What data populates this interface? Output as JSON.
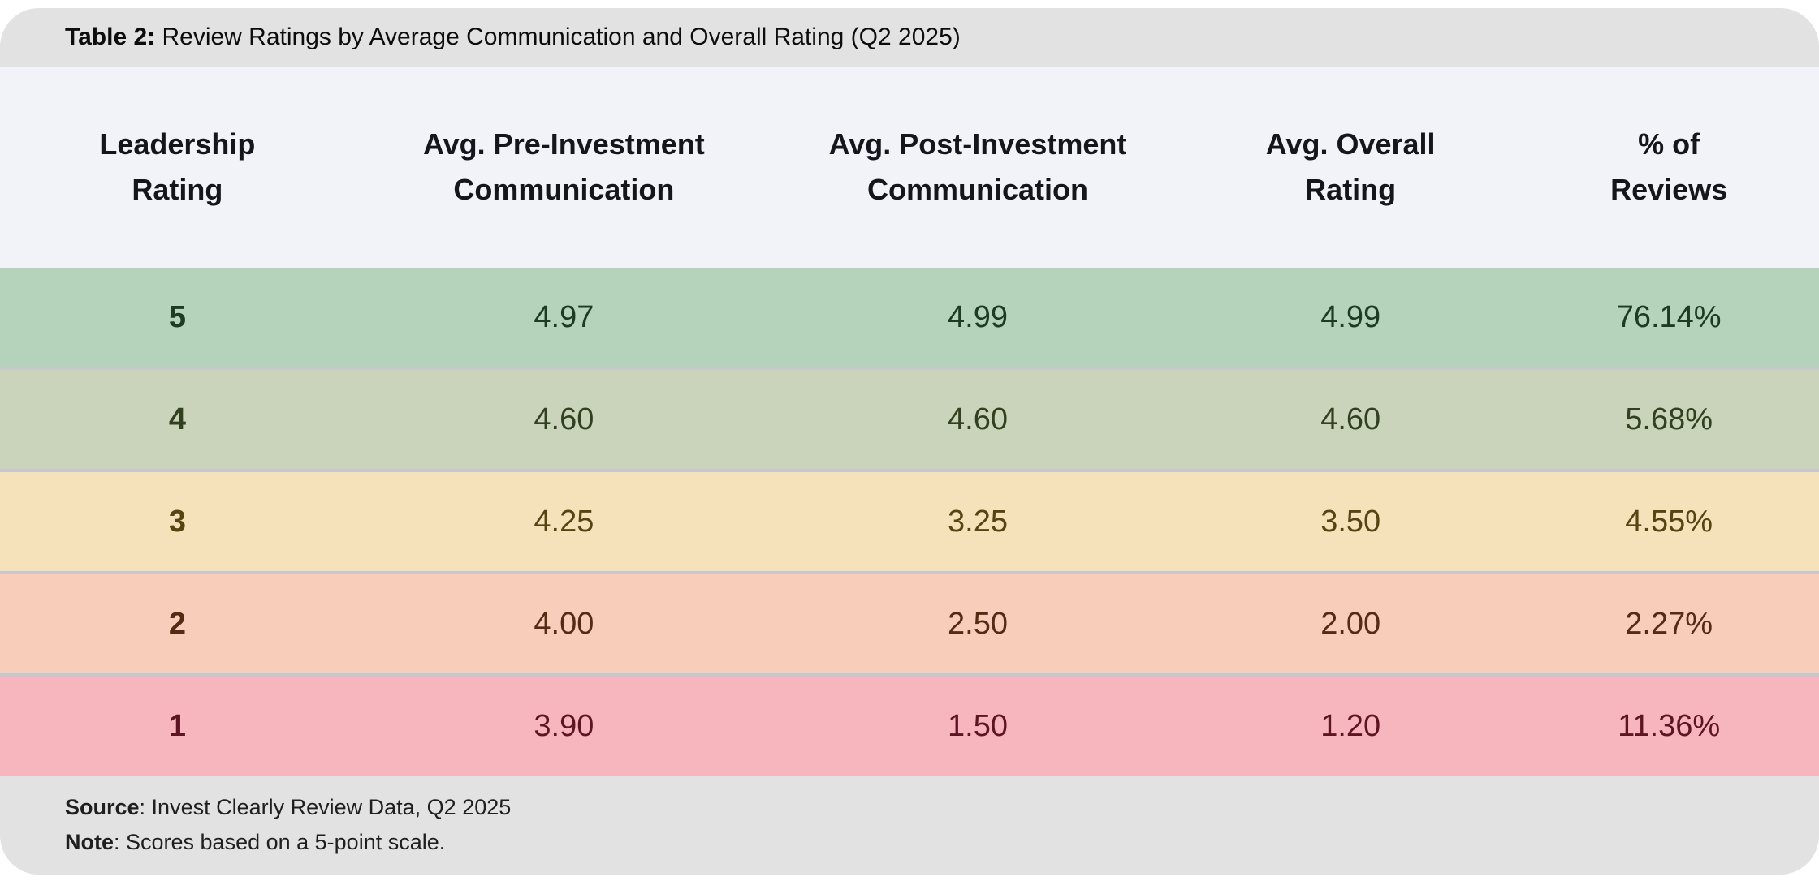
{
  "title": {
    "label": "Table 2:",
    "text": " Review Ratings by Average Communication and Overall Rating (Q2 2025)"
  },
  "table": {
    "columns": [
      {
        "line1": "Leadership",
        "line2": "Rating"
      },
      {
        "line1": "Avg. Pre-Investment",
        "line2": "Communication"
      },
      {
        "line1": "Avg. Post-Investment",
        "line2": "Communication"
      },
      {
        "line1": "Avg. Overall",
        "line2": "Rating"
      },
      {
        "line1": "% of",
        "line2": "Reviews"
      }
    ],
    "rows": [
      {
        "rating": "5",
        "pre": "4.97",
        "post": "4.99",
        "overall": "4.99",
        "pct": "76.14%",
        "bg": "#b5d3ba",
        "fg": "#1d3a23"
      },
      {
        "rating": "4",
        "pre": "4.60",
        "post": "4.60",
        "overall": "4.60",
        "pct": "5.68%",
        "bg": "#c9d4ba",
        "fg": "#31411f"
      },
      {
        "rating": "3",
        "pre": "4.25",
        "post": "3.25",
        "overall": "3.50",
        "pct": "4.55%",
        "bg": "#f5e2bb",
        "fg": "#554511"
      },
      {
        "rating": "2",
        "pre": "4.00",
        "post": "2.50",
        "overall": "2.00",
        "pct": "2.27%",
        "bg": "#f8ceba",
        "fg": "#562b14"
      },
      {
        "rating": "1",
        "pre": "3.90",
        "post": "1.50",
        "overall": "1.20",
        "pct": "11.36%",
        "bg": "#f7b6bd",
        "fg": "#5e1523"
      }
    ]
  },
  "footer": {
    "source_label": "Source",
    "source_text": ": Invest Clearly Review Data, Q2 2025",
    "note_label": "Note",
    "note_text": ": Scores based on a 5-point scale."
  },
  "colors": {
    "band_gray": "#e2e2e2",
    "header_bg": "#f2f3f9",
    "separator": "#c7c7ce",
    "page_bg": "#ffffff"
  },
  "chart_data": {
    "type": "table",
    "title": "Table 2: Review Ratings by Average Communication and Overall Rating (Q2 2025)",
    "columns": [
      "Leadership Rating",
      "Avg. Pre-Investment Communication",
      "Avg. Post-Investment Communication",
      "Avg. Overall Rating",
      "% of Reviews"
    ],
    "rows": [
      [
        5,
        4.97,
        4.99,
        4.99,
        "76.14%"
      ],
      [
        4,
        4.6,
        4.6,
        4.6,
        "5.68%"
      ],
      [
        3,
        4.25,
        3.25,
        3.5,
        "4.55%"
      ],
      [
        2,
        4.0,
        2.5,
        2.0,
        "2.27%"
      ],
      [
        1,
        3.9,
        1.5,
        1.2,
        "11.36%"
      ]
    ],
    "source": "Invest Clearly Review Data, Q2 2025",
    "note": "Scores based on a 5-point scale.",
    "layout_hints": {
      "row_color_scale": "green-to-red by leadership rating",
      "scale": "5-point"
    }
  }
}
